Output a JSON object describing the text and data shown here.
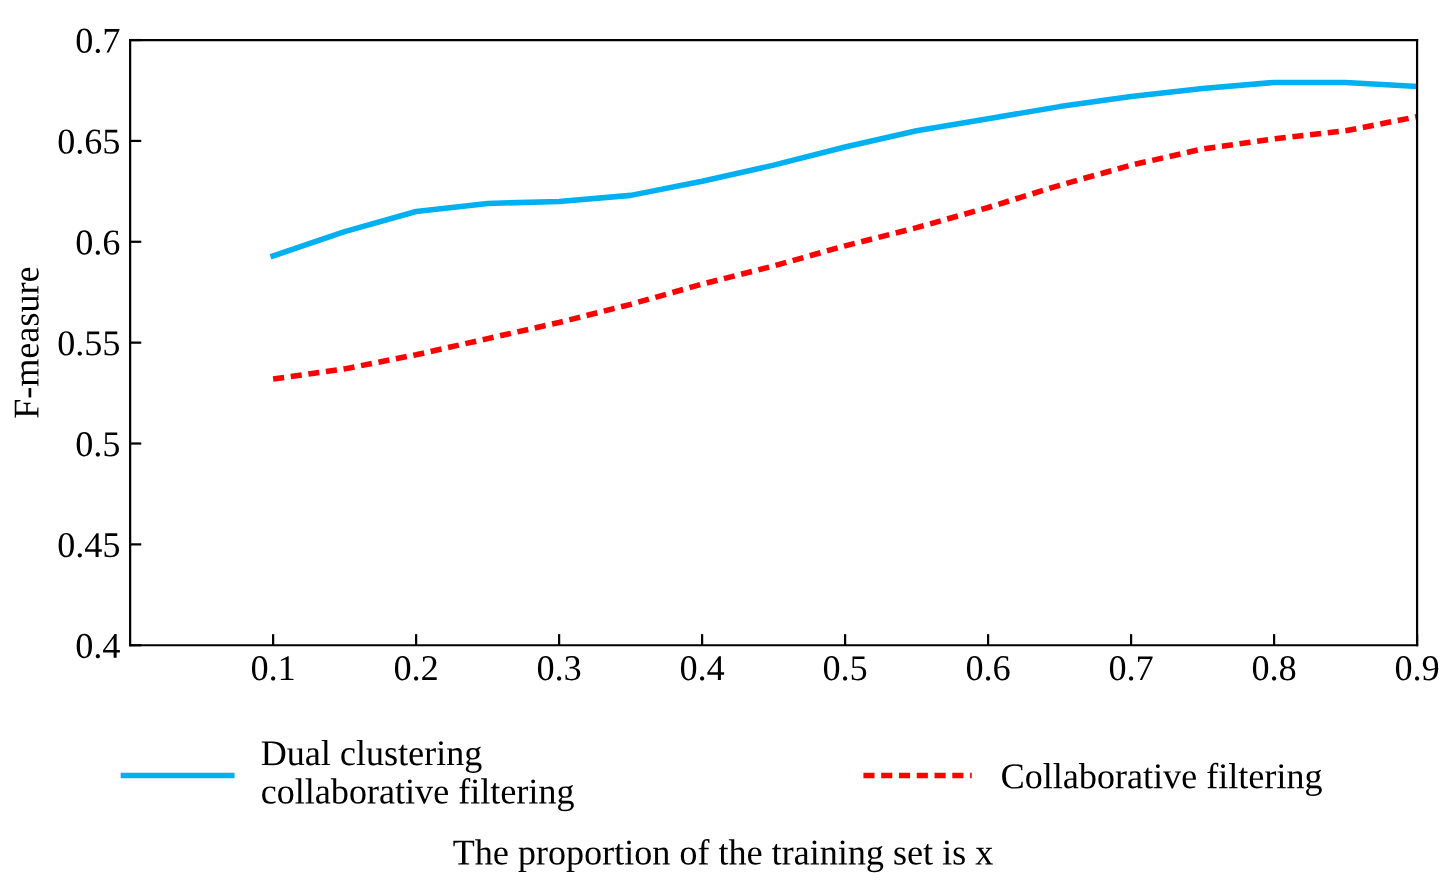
{
  "chart_data": {
    "type": "line",
    "xlabel": "The proportion of the training set is x",
    "ylabel": "F-measure",
    "xlim": [
      0,
      0.9
    ],
    "xticks": [
      0.1,
      0.2,
      0.3,
      0.4,
      0.5,
      0.6,
      0.7,
      0.8,
      0.9
    ],
    "ylim": [
      0.4,
      0.7
    ],
    "yticks": [
      0.4,
      0.45,
      0.5,
      0.55,
      0.6,
      0.65,
      0.7
    ],
    "grid": false,
    "legend": "bottom",
    "marker": "none",
    "series": [
      {
        "name": "Dual clustering\ncollaborative filtering",
        "color": "#00b0f0",
        "line_style": "solid",
        "x": [
          0.1,
          0.15,
          0.2,
          0.25,
          0.3,
          0.35,
          0.4,
          0.45,
          0.5,
          0.55,
          0.6,
          0.65,
          0.7,
          0.75,
          0.8,
          0.85,
          0.9
        ],
        "values": [
          0.593,
          0.605,
          0.615,
          0.619,
          0.62,
          0.623,
          0.63,
          0.638,
          0.647,
          0.655,
          0.661,
          0.667,
          0.672,
          0.676,
          0.679,
          0.679,
          0.677
        ]
      },
      {
        "name": "Collaborative filtering",
        "color": "#ff0000",
        "line_style": "dotted",
        "x": [
          0.1,
          0.15,
          0.2,
          0.25,
          0.3,
          0.35,
          0.4,
          0.45,
          0.5,
          0.55,
          0.6,
          0.65,
          0.7,
          0.75,
          0.8,
          0.85,
          0.9
        ],
        "values": [
          0.532,
          0.537,
          0.544,
          0.552,
          0.56,
          0.569,
          0.579,
          0.588,
          0.598,
          0.607,
          0.617,
          0.628,
          0.638,
          0.646,
          0.651,
          0.655,
          0.662
        ]
      }
    ]
  }
}
